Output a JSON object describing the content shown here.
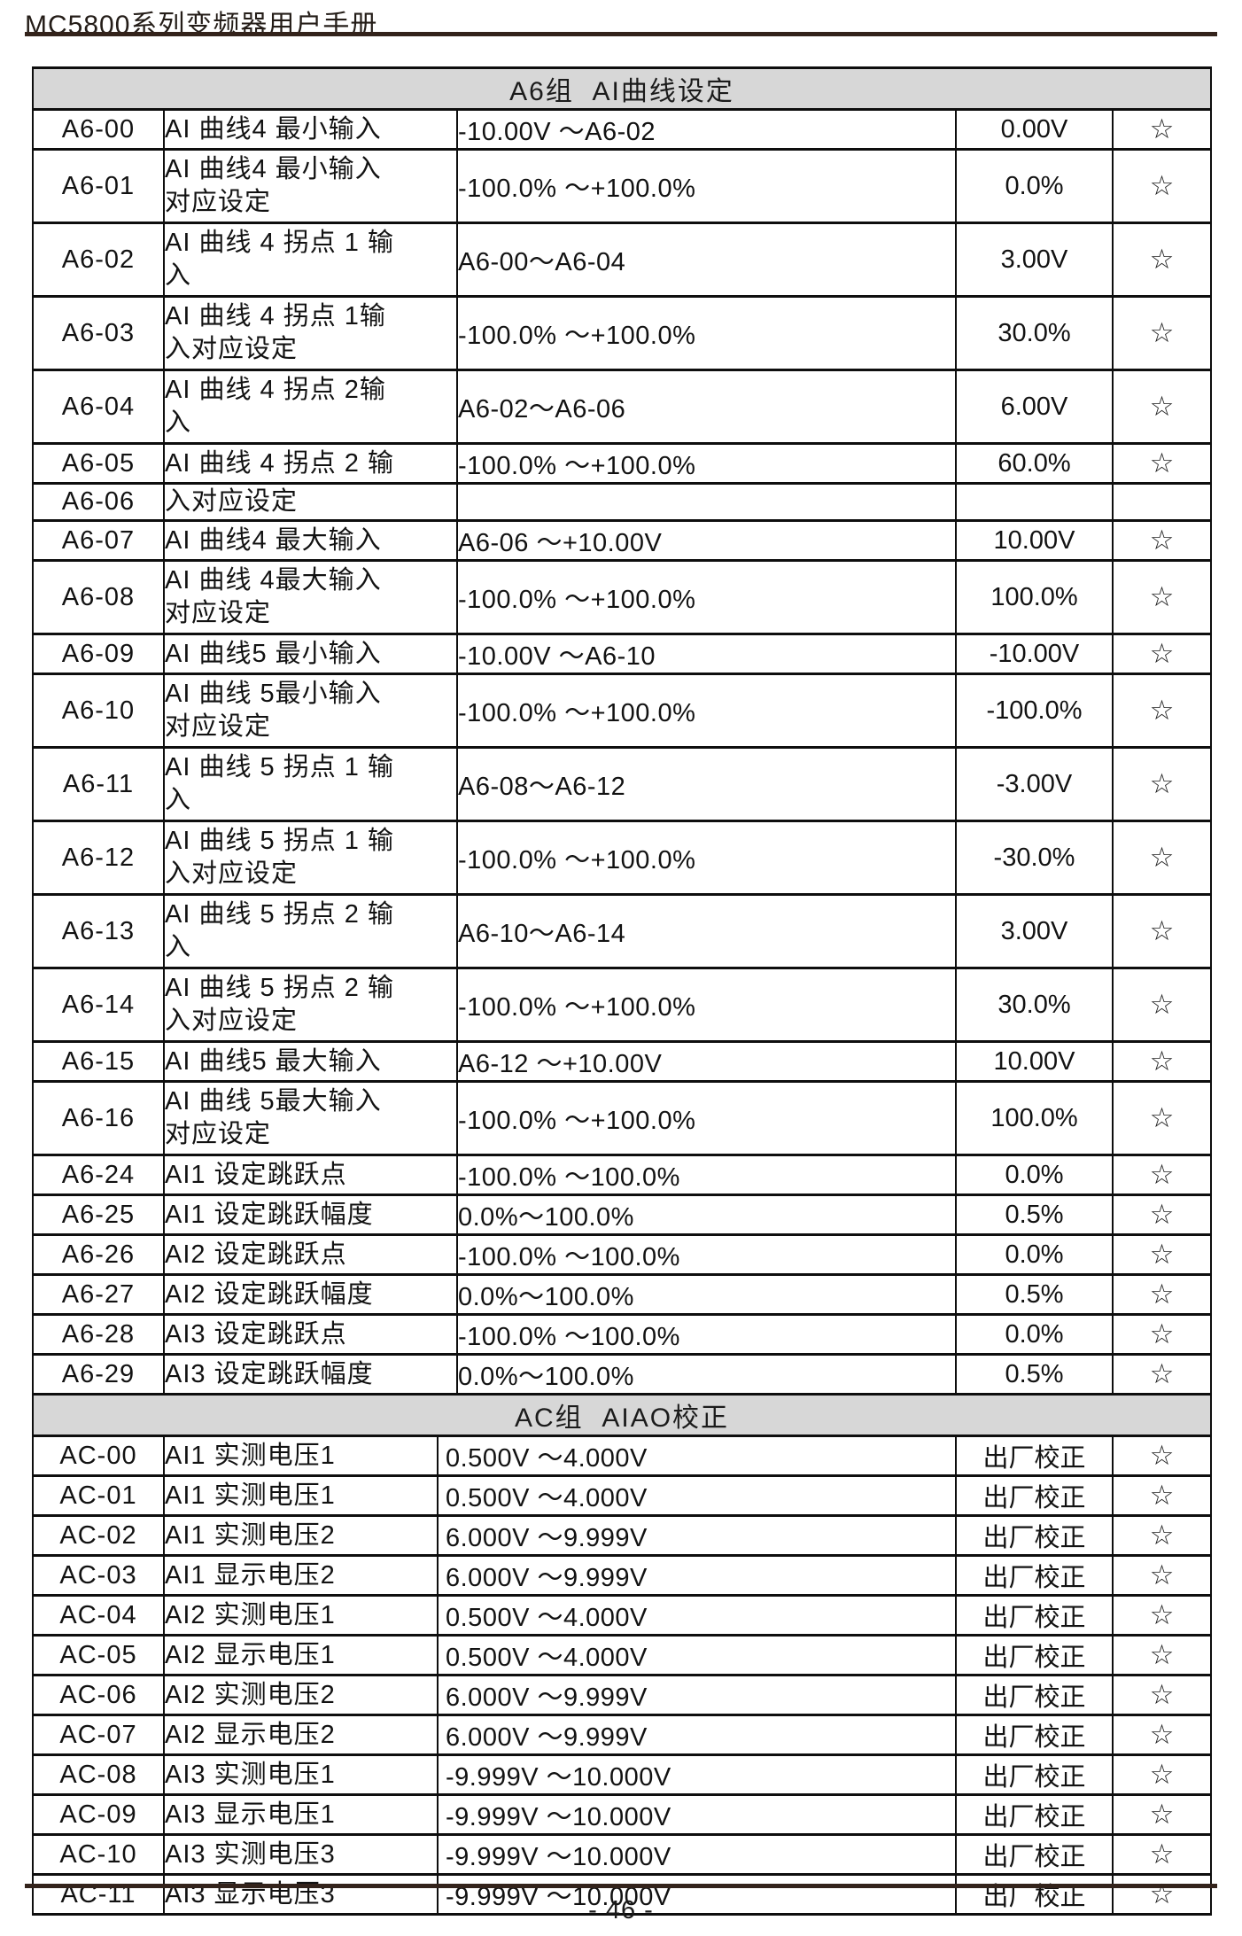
{
  "page": {
    "title": "MC5800系列变频器用户手册",
    "page_number": "- 46 -"
  },
  "tables": [
    {
      "section_title": "A6组  AI曲线设定",
      "rows": [
        {
          "code": "A6-00",
          "name": "AI 曲线4 最小输入",
          "range": "-10.00V ～A6-02",
          "default": "0.00V",
          "star": "☆"
        },
        {
          "code": "A6-01",
          "name": "AI 曲线4 最小输入\n对应设定",
          "range": "-100.0% ～+100.0%",
          "default": "0.0%",
          "star": "☆"
        },
        {
          "code": "A6-02",
          "name": "AI 曲线 4 拐点 1 输\n入",
          "range": "A6-00～A6-04",
          "default": "3.00V",
          "star": "☆"
        },
        {
          "code": "A6-03",
          "name": "AI 曲线 4 拐点 1输\n入对应设定",
          "range": "-100.0% ～+100.0%",
          "default": "30.0%",
          "star": "☆"
        },
        {
          "code": "A6-04",
          "name": "AI 曲线 4 拐点 2输\n入",
          "range": "A6-02～A6-06",
          "default": "6.00V",
          "star": "☆"
        },
        {
          "code": "A6-05",
          "name": "AI 曲线 4 拐点 2 输",
          "range": "-100.0% ～+100.0%",
          "default": "60.0%",
          "star": "☆"
        },
        {
          "code": "A6-06",
          "name": "入对应设定",
          "range": "",
          "default": "",
          "star": ""
        },
        {
          "code": "A6-07",
          "name": "AI 曲线4 最大输入",
          "range": "A6-06 ～+10.00V",
          "default": "10.00V",
          "star": "☆"
        },
        {
          "code": "A6-08",
          "name": "AI 曲线 4最大输入\n对应设定",
          "range": "-100.0% ～+100.0%",
          "default": "100.0%",
          "star": "☆"
        },
        {
          "code": "A6-09",
          "name": "AI 曲线5 最小输入",
          "range": "-10.00V ～A6-10",
          "default": "-10.00V",
          "star": "☆"
        },
        {
          "code": "A6-10",
          "name": "AI 曲线 5最小输入\n对应设定",
          "range": "-100.0% ～+100.0%",
          "default": "-100.0%",
          "star": "☆"
        },
        {
          "code": "A6-11",
          "name": "AI 曲线 5 拐点 1 输\n入",
          "range": "A6-08～A6-12",
          "default": "-3.00V",
          "star": "☆"
        },
        {
          "code": "A6-12",
          "name": "AI 曲线 5 拐点 1 输\n入对应设定",
          "range": "-100.0% ～+100.0%",
          "default": "-30.0%",
          "star": "☆"
        },
        {
          "code": "A6-13",
          "name": "AI 曲线 5 拐点 2 输\n入",
          "range": " A6-10～A6-14",
          "default": "3.00V",
          "star": "☆"
        },
        {
          "code": "A6-14",
          "name": "AI 曲线 5 拐点 2 输\n入对应设定",
          "range": "-100.0% ～+100.0%",
          "default": "30.0%",
          "star": "☆"
        },
        {
          "code": "A6-15",
          "name": "AI 曲线5 最大输入",
          "range": "A6-12 ～+10.00V",
          "default": "10.00V",
          "star": "☆"
        },
        {
          "code": "A6-16",
          "name": "AI 曲线 5最大输入\n对应设定",
          "range": "-100.0% ～+100.0%",
          "default": "100.0%",
          "star": "☆"
        },
        {
          "code": "A6-24",
          "name": "AI1 设定跳跃点",
          "range": "-100.0%  ～100.0%",
          "default": "0.0%",
          "star": "☆"
        },
        {
          "code": "A6-25",
          "name": "AI1 设定跳跃幅度",
          "range": "0.0%～100.0%",
          "default": "0.5%",
          "star": "☆"
        },
        {
          "code": "A6-26",
          "name": "AI2 设定跳跃点",
          "range": "-100.0%  ～100.0%",
          "default": "0.0%",
          "star": "☆"
        },
        {
          "code": "A6-27",
          "name": "AI2 设定跳跃幅度",
          "range": "0.0%～100.0%",
          "default": "0.5%",
          "star": "☆"
        },
        {
          "code": "A6-28",
          "name": "AI3 设定跳跃点",
          "range": "-100.0%  ～100.0%",
          "default": "0.0%",
          "star": "☆"
        },
        {
          "code": "A6-29",
          "name": "AI3 设定跳跃幅度",
          "range": "0.0%～100.0%",
          "default": "0.5%",
          "star": "☆"
        }
      ]
    },
    {
      "section_title": "AC组  AIAO校正",
      "rows": [
        {
          "code": "AC-00",
          "name": "AI1 实测电压1",
          "range": "0.500V ～4.000V",
          "default": "出厂校正",
          "star": "☆"
        },
        {
          "code": "AC-01",
          "name": "AI1 实测电压1",
          "range": "0.500V ～4.000V",
          "default": "出厂校正",
          "star": "☆"
        },
        {
          "code": "AC-02",
          "name": "AI1 实测电压2",
          "range": "6.000V ～9.999V",
          "default": "出厂校正",
          "star": "☆"
        },
        {
          "code": "AC-03",
          "name": "AI1 显示电压2",
          "range": "6.000V ～9.999V",
          "default": "出厂校正",
          "star": "☆"
        },
        {
          "code": "AC-04",
          "name": "AI2 实测电压1",
          "range": "0.500V ～4.000V",
          "default": "出厂校正",
          "star": "☆"
        },
        {
          "code": "AC-05",
          "name": "AI2 显示电压1",
          "range": "0.500V ～4.000V",
          "default": "出厂校正",
          "star": "☆"
        },
        {
          "code": "AC-06",
          "name": "AI2 实测电压2",
          "range": "6.000V ～9.999V",
          "default": "出厂校正",
          "star": "☆"
        },
        {
          "code": "AC-07",
          "name": "AI2 显示电压2",
          "range": "6.000V ～9.999V",
          "default": "出厂校正",
          "star": "☆"
        },
        {
          "code": "AC-08",
          "name": "AI3 实测电压1",
          "range": "-9.999V ～10.000V",
          "default": "出厂校正",
          "star": "☆"
        },
        {
          "code": "AC-09",
          "name": "AI3 显示电压1",
          "range": "-9.999V ～10.000V",
          "default": "出厂校正",
          "star": "☆"
        },
        {
          "code": "AC-10",
          "name": "AI3 实测电压3",
          "range": "-9.999V ～10.000V",
          "default": "出厂校正",
          "star": "☆"
        },
        {
          "code": "AC-11",
          "name": "AI3 显示电压3",
          "range": "-9.999V ～10.000V",
          "default": "出厂校正",
          "star": "☆"
        }
      ]
    }
  ]
}
